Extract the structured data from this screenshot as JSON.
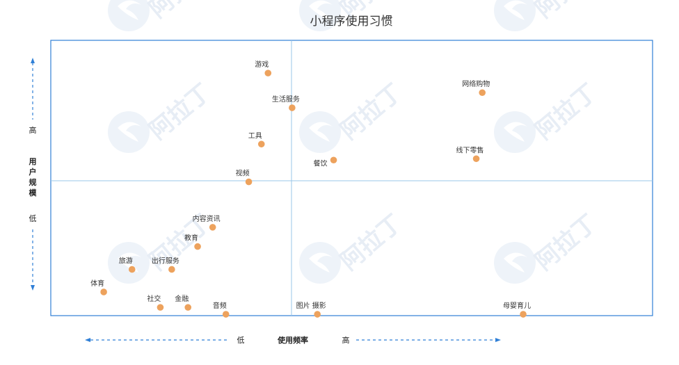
{
  "watermark": {
    "text": "阿拉丁"
  },
  "chart_data": {
    "type": "scatter",
    "title": "小程序使用习惯",
    "xlabel": "使用频率",
    "ylabel": "用户规模",
    "x_low": "低",
    "x_high": "高",
    "y_high": "高",
    "y_low": "低",
    "xlim": [
      0,
      100
    ],
    "ylim": [
      0,
      100
    ],
    "x_divider": 40,
    "y_divider": 49,
    "grid": false,
    "colors": {
      "point": "#eda25d",
      "frame": "#2f7fd6",
      "divider": "#9ac7ea",
      "arrow": "#2f7fd6"
    },
    "points": [
      {
        "label": "游戏",
        "x": 36.1,
        "y": 88.1
      },
      {
        "label": "生活服务",
        "x": 40.1,
        "y": 75.5
      },
      {
        "label": "网络购物",
        "x": 71.7,
        "y": 81.0
      },
      {
        "label": "工具",
        "x": 35.0,
        "y": 62.3
      },
      {
        "label": "餐饮",
        "x": 47.0,
        "y": 56.5
      },
      {
        "label": "线下零售",
        "x": 70.7,
        "y": 57.0
      },
      {
        "label": "视频",
        "x": 32.9,
        "y": 48.6
      },
      {
        "label": "内容资讯",
        "x": 26.9,
        "y": 32.1
      },
      {
        "label": "教育",
        "x": 24.4,
        "y": 25.1
      },
      {
        "label": "旅游",
        "x": 13.5,
        "y": 16.8
      },
      {
        "label": "出行服务",
        "x": 20.1,
        "y": 16.8
      },
      {
        "label": "体育",
        "x": 8.8,
        "y": 8.6
      },
      {
        "label": "社交",
        "x": 18.2,
        "y": 3.0
      },
      {
        "label": "金融",
        "x": 22.8,
        "y": 3.0
      },
      {
        "label": "音频",
        "x": 29.1,
        "y": 0.5
      },
      {
        "label": "图片 摄影",
        "x": 44.3,
        "y": 0.5
      },
      {
        "label": "母婴育儿",
        "x": 78.5,
        "y": 0.5
      }
    ]
  }
}
